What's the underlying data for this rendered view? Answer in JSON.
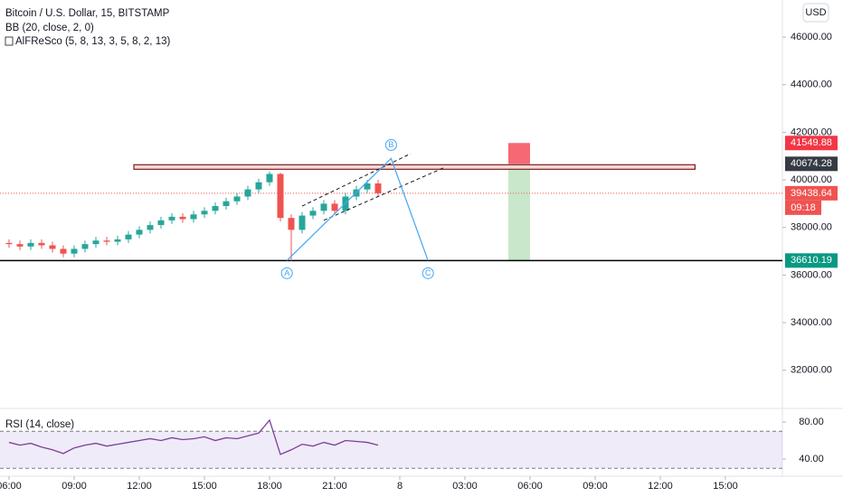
{
  "chart_data": [
    {
      "type": "candlestick",
      "title": "Bitcoin / U.S. Dollar, 15, BITSTAMP",
      "indicators": [
        "BB (20, close, 2, 0)",
        "AlFReSco (5, 8, 13, 3, 5, 8, 2, 13)"
      ],
      "currency": "USD",
      "x": [
        0,
        0.5,
        1,
        1.5,
        2,
        2.5,
        3,
        3.5,
        4,
        4.5,
        5,
        5.5,
        6,
        6.5,
        7,
        7.5,
        8,
        8.5,
        9,
        9.5,
        10,
        10.5,
        11,
        11.5,
        12,
        12.5,
        13,
        13.5,
        14,
        14.5,
        15,
        15.5,
        16,
        16.5,
        17
      ],
      "open": [
        37350,
        37300,
        37200,
        37350,
        37250,
        37100,
        36900,
        37100,
        37300,
        37450,
        37400,
        37500,
        37700,
        37900,
        38100,
        38300,
        38450,
        38350,
        38550,
        38700,
        38900,
        39100,
        39300,
        39600,
        39900,
        40250,
        38400,
        37900,
        38500,
        38700,
        39000,
        38700,
        39300,
        39600,
        39850
      ],
      "high": [
        37500,
        37450,
        37500,
        37500,
        37400,
        37250,
        37250,
        37450,
        37600,
        37600,
        37650,
        37850,
        38050,
        38250,
        38450,
        38600,
        38600,
        38700,
        38850,
        39050,
        39250,
        39450,
        39750,
        40050,
        40350,
        40300,
        38550,
        38650,
        38850,
        39150,
        39150,
        39450,
        39750,
        40000,
        40000
      ],
      "low": [
        37150,
        37050,
        37050,
        37100,
        36950,
        36750,
        36750,
        36950,
        37150,
        37250,
        37250,
        37350,
        37550,
        37750,
        37950,
        38150,
        38200,
        38200,
        38400,
        38550,
        38750,
        38950,
        39150,
        39450,
        39750,
        38250,
        36600,
        37750,
        38350,
        38550,
        38550,
        38550,
        39150,
        39450,
        39300
      ],
      "close": [
        37300,
        37200,
        37350,
        37250,
        37100,
        36900,
        37100,
        37300,
        37450,
        37400,
        37500,
        37700,
        37900,
        38100,
        38300,
        38450,
        38350,
        38550,
        38700,
        38900,
        39100,
        39300,
        39600,
        39900,
        40250,
        38400,
        37900,
        38500,
        38700,
        39000,
        38700,
        39300,
        39600,
        39850,
        39440
      ],
      "up_color": "#26a69a",
      "down_color": "#ef5350",
      "xlim": [
        -0.4167,
        35.625
      ],
      "xticks": [
        {
          "value": 0,
          "label": "06:00"
        },
        {
          "value": 3,
          "label": "09:00"
        },
        {
          "value": 6,
          "label": "12:00"
        },
        {
          "value": 9,
          "label": "15:00"
        },
        {
          "value": 12,
          "label": "18:00"
        },
        {
          "value": 15,
          "label": "21:00"
        },
        {
          "value": 18,
          "label": "8"
        },
        {
          "value": 21,
          "label": "03:00"
        },
        {
          "value": 24,
          "label": "06:00"
        },
        {
          "value": 27,
          "label": "09:00"
        },
        {
          "value": 30,
          "label": "12:00"
        },
        {
          "value": 33,
          "label": "15:00"
        }
      ],
      "ylim": [
        30470,
        47560
      ],
      "yticks": [
        {
          "value": 32000,
          "label": "32000.00"
        },
        {
          "value": 34000,
          "label": "34000.00"
        },
        {
          "value": 36000,
          "label": "36000.00"
        },
        {
          "value": 38000,
          "label": "38000.00"
        },
        {
          "value": 40000,
          "label": "40000.00"
        },
        {
          "value": 42000,
          "label": "42000.00"
        },
        {
          "value": 44000,
          "label": "44000.00"
        },
        {
          "value": 46000,
          "label": "46000.00"
        }
      ],
      "price_labels": [
        {
          "value": 41549.88,
          "color": "#f23645"
        },
        {
          "value": 40674.28,
          "color": "#363a45"
        },
        {
          "value": 39438.64,
          "color": "#ef5350"
        },
        {
          "value": 36610.19,
          "color": "#089981"
        }
      ],
      "countdown": "09:18",
      "waves": [
        {
          "label": "A",
          "x": 12.8,
          "y": 36610
        },
        {
          "label": "B",
          "x": 17.6,
          "y": 40900
        },
        {
          "label": "C",
          "x": 19.3,
          "y": 36610
        }
      ],
      "wave_color": "#42a5f5",
      "position": {
        "x": [
          23,
          24
        ]
      }
    },
    {
      "type": "line",
      "title": "RSI (14, close)",
      "color": "#7e3f98",
      "values": [
        58,
        55,
        57,
        53,
        50,
        46,
        52,
        55,
        57,
        54,
        56,
        58,
        60,
        62,
        60,
        63,
        61,
        62,
        64,
        60,
        63,
        62,
        65,
        68,
        82,
        45,
        50,
        56,
        54,
        58,
        55,
        60,
        59,
        58,
        55
      ],
      "band": [
        30,
        70
      ],
      "band_color": "#7e57c2",
      "ylim": [
        21.5,
        91.7
      ],
      "yticks": [
        {
          "value": 40,
          "label": "40.00"
        },
        {
          "value": 80,
          "label": "80.00"
        }
      ]
    }
  ]
}
